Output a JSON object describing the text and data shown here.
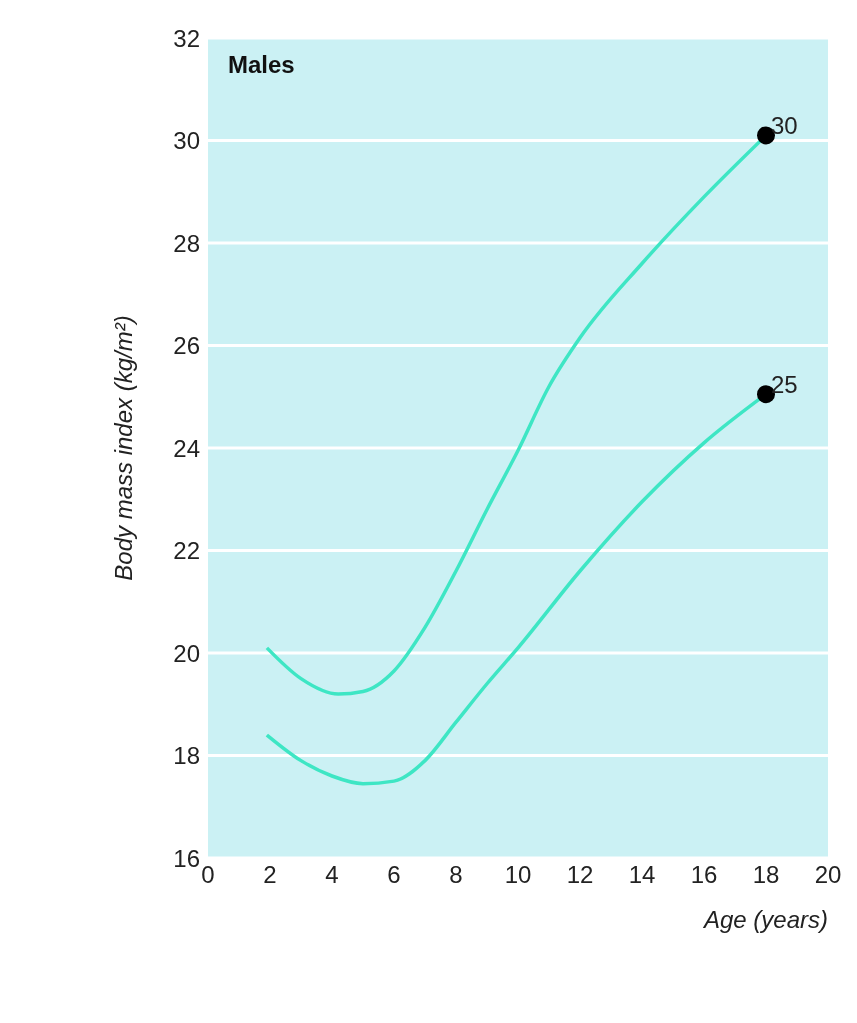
{
  "chart_data": {
    "type": "line",
    "title": "Males",
    "xlabel": "Age (years)",
    "ylabel": "Body mass index (kg/m²)",
    "series": [
      {
        "color": "#3ee6c4",
        "x": [
          1.9,
          3,
          4.2,
          5,
          6,
          7,
          8,
          9,
          10,
          11,
          12,
          14,
          16,
          18
        ],
        "values": [
          20.1,
          19.5,
          19.2,
          19.25,
          19.65,
          20.5,
          21.6,
          22.8,
          23.95,
          25.2,
          26.15,
          27.6,
          28.9,
          30.1
        ]
      },
      {
        "color": "#3ee6c4",
        "x": [
          1.9,
          3,
          4,
          5,
          6,
          7,
          8,
          9,
          10,
          12,
          14,
          16,
          18
        ],
        "values": [
          18.4,
          17.9,
          17.6,
          17.45,
          17.5,
          17.9,
          18.65,
          19.4,
          20.1,
          21.6,
          22.95,
          24.1,
          25.05
        ]
      }
    ],
    "annotations": [
      {
        "text": "30",
        "x": 18,
        "y": 30.1
      },
      {
        "text": "25",
        "x": 18,
        "y": 25.05
      }
    ],
    "xlim": [
      0,
      20
    ],
    "xticks": [
      0,
      2,
      4,
      6,
      8,
      10,
      12,
      14,
      16,
      18,
      20
    ],
    "ylim": [
      16,
      32
    ],
    "yticks": [
      16,
      18,
      20,
      22,
      24,
      26,
      28,
      30,
      32
    ],
    "grid": "y",
    "marker": "none",
    "line_style": "solid"
  }
}
